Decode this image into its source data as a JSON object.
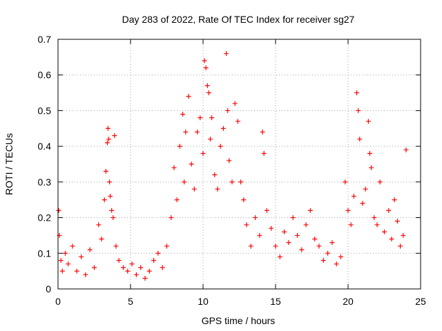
{
  "chart_data": {
    "type": "scatter",
    "title": "Day 283 of 2022, Rate Of TEC Index for receiver sg27",
    "xlabel": "GPS time / hours",
    "ylabel": "ROTI / TECUs",
    "xlim": [
      0,
      25
    ],
    "ylim": [
      0,
      0.7
    ],
    "x_ticks": [
      0,
      5,
      10,
      15,
      20,
      25
    ],
    "y_ticks": [
      0,
      0.1,
      0.2,
      0.3,
      0.4,
      0.5,
      0.6,
      0.7
    ],
    "grid": true,
    "marker": "+",
    "color": "#ff0000",
    "series": [
      {
        "x": [
          0.05,
          0.1,
          0.2,
          0.3,
          0.5,
          0.7,
          1.0,
          1.3,
          1.6,
          1.9,
          2.2,
          2.5,
          2.8,
          3.0,
          3.2,
          3.3,
          3.4,
          3.45,
          3.5,
          3.55,
          3.6,
          3.7,
          3.8,
          3.9,
          4.0,
          4.2,
          4.5,
          4.8,
          5.1,
          5.4,
          5.7,
          6.0,
          6.3,
          6.6,
          6.9,
          7.2,
          7.5,
          7.8,
          8.0,
          8.2,
          8.4,
          8.6,
          8.7,
          8.8,
          9.0,
          9.2,
          9.4,
          9.6,
          9.8,
          10.0,
          10.1,
          10.2,
          10.3,
          10.4,
          10.5,
          10.6,
          10.8,
          11.0,
          11.2,
          11.4,
          11.6,
          11.7,
          11.8,
          12.0,
          12.2,
          12.4,
          12.6,
          12.8,
          13.0,
          13.3,
          13.6,
          13.9,
          14.1,
          14.2,
          14.4,
          14.7,
          15.0,
          15.3,
          15.6,
          15.9,
          16.2,
          16.5,
          16.8,
          17.1,
          17.4,
          17.7,
          18.0,
          18.3,
          18.6,
          18.9,
          19.2,
          19.5,
          19.8,
          20.0,
          20.2,
          20.4,
          20.6,
          20.7,
          20.8,
          21.0,
          21.2,
          21.4,
          21.5,
          21.6,
          21.8,
          22.0,
          22.2,
          22.5,
          22.8,
          23.0,
          23.2,
          23.4,
          23.6,
          23.8,
          24.0
        ],
        "y": [
          0.22,
          0.15,
          0.08,
          0.05,
          0.1,
          0.07,
          0.12,
          0.05,
          0.09,
          0.04,
          0.11,
          0.06,
          0.18,
          0.14,
          0.25,
          0.33,
          0.41,
          0.45,
          0.42,
          0.3,
          0.26,
          0.22,
          0.2,
          0.43,
          0.12,
          0.08,
          0.06,
          0.05,
          0.07,
          0.04,
          0.06,
          0.03,
          0.05,
          0.08,
          0.1,
          0.06,
          0.12,
          0.2,
          0.34,
          0.25,
          0.4,
          0.49,
          0.3,
          0.44,
          0.54,
          0.35,
          0.28,
          0.44,
          0.48,
          0.38,
          0.64,
          0.62,
          0.57,
          0.55,
          0.42,
          0.48,
          0.32,
          0.28,
          0.4,
          0.45,
          0.66,
          0.5,
          0.36,
          0.3,
          0.52,
          0.47,
          0.3,
          0.25,
          0.18,
          0.12,
          0.2,
          0.15,
          0.44,
          0.38,
          0.22,
          0.17,
          0.12,
          0.09,
          0.16,
          0.13,
          0.2,
          0.15,
          0.11,
          0.18,
          0.22,
          0.14,
          0.12,
          0.08,
          0.1,
          0.13,
          0.07,
          0.09,
          0.3,
          0.22,
          0.18,
          0.26,
          0.55,
          0.5,
          0.42,
          0.24,
          0.28,
          0.47,
          0.38,
          0.34,
          0.2,
          0.18,
          0.3,
          0.16,
          0.22,
          0.14,
          0.25,
          0.19,
          0.12,
          0.15,
          0.39
        ]
      }
    ]
  }
}
